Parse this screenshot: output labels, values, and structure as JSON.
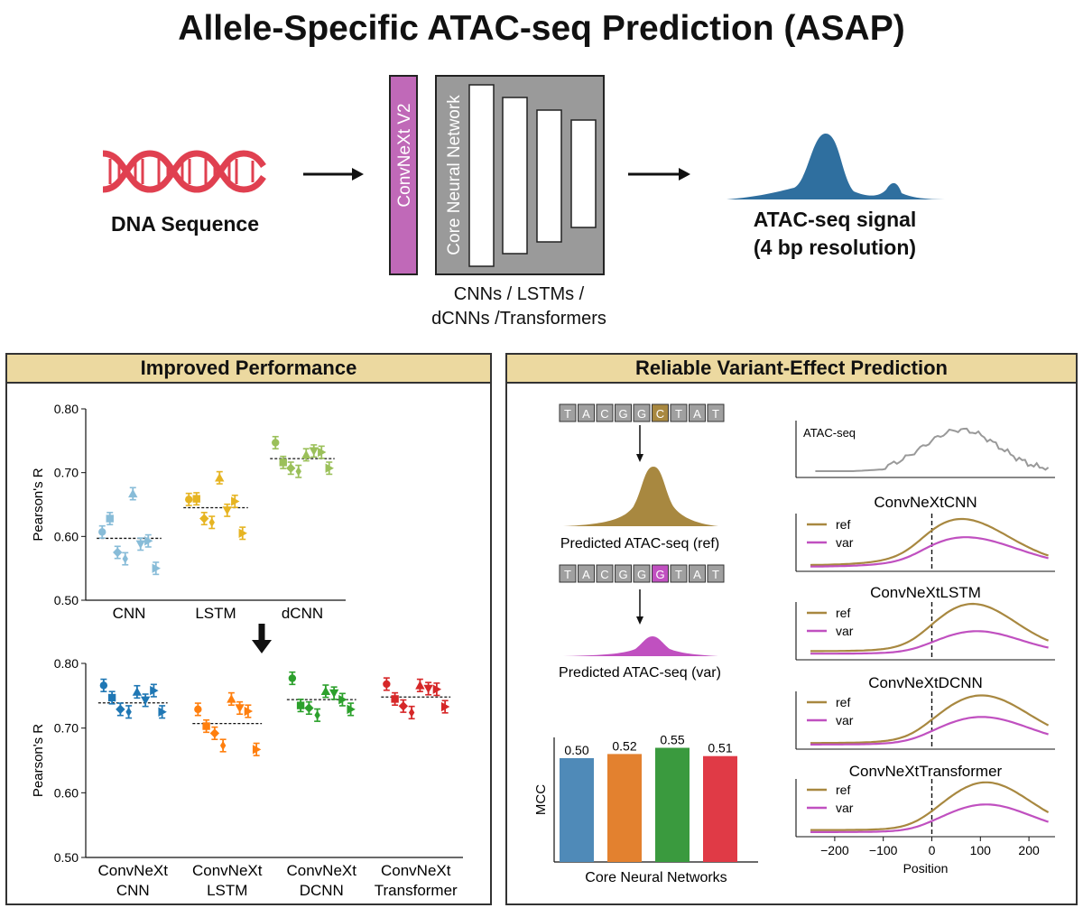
{
  "title": "Allele-Specific ATAC-seq Prediction (ASAP)",
  "pipeline": {
    "dna_label": "DNA Sequence",
    "convnext_label": "ConvNeXt V2",
    "core_label": "Core Neural Network",
    "core_caption_line1": "CNNs / LSTMs /",
    "core_caption_line2": "dCNNs /Transformers",
    "output_label_line1": "ATAC-seq signal",
    "output_label_line2": "(4 bp resolution)"
  },
  "colors": {
    "convnext": "#c069b8",
    "dna": "#e04050",
    "signal": "#2f6f9f",
    "ref": "#a88840",
    "var": "#c050c0",
    "header": "#ecd9a0"
  },
  "left_panel": {
    "title": "Improved Performance",
    "chart_data": [
      {
        "type": "scatter",
        "ylabel": "Pearson's R",
        "ylim": [
          0.5,
          0.8
        ],
        "yticks": [
          "0.50",
          "0.60",
          "0.70",
          "0.80"
        ],
        "categories": [
          "CNN",
          "LSTM",
          "dCNN"
        ],
        "colors": [
          "#88bcd8",
          "#e6b422",
          "#9bc05a"
        ],
        "means": [
          0.597,
          0.645,
          0.722
        ],
        "values": [
          [
            0.607,
            0.628,
            0.575,
            0.565,
            0.667,
            0.588,
            0.593,
            0.55
          ],
          [
            0.658,
            0.659,
            0.628,
            0.622,
            0.692,
            0.641,
            0.655,
            0.605
          ],
          [
            0.747,
            0.716,
            0.707,
            0.702,
            0.728,
            0.734,
            0.732,
            0.707
          ]
        ]
      },
      {
        "type": "scatter",
        "ylabel": "Pearson's R",
        "ylim": [
          0.5,
          0.8
        ],
        "yticks": [
          "0.50",
          "0.60",
          "0.70",
          "0.80"
        ],
        "categories": [
          [
            "ConvNeXt",
            "CNN"
          ],
          [
            "ConvNeXt",
            "LSTM"
          ],
          [
            "ConvNeXt",
            "DCNN"
          ],
          [
            "ConvNeXt",
            "Transformer"
          ]
        ],
        "colors": [
          "#1f77b4",
          "#ff7f0e",
          "#2ca02c",
          "#d62728"
        ],
        "means": [
          0.739,
          0.707,
          0.744,
          0.748
        ],
        "values": [
          [
            0.766,
            0.747,
            0.729,
            0.725,
            0.756,
            0.743,
            0.758,
            0.725
          ],
          [
            0.729,
            0.703,
            0.692,
            0.673,
            0.745,
            0.731,
            0.726,
            0.667
          ],
          [
            0.777,
            0.735,
            0.731,
            0.72,
            0.757,
            0.754,
            0.744,
            0.729
          ],
          [
            0.768,
            0.745,
            0.734,
            0.724,
            0.766,
            0.761,
            0.76,
            0.733
          ]
        ]
      }
    ]
  },
  "right_panel": {
    "title": "Reliable Variant-Effect Prediction",
    "ref_sequence": [
      "T",
      "A",
      "C",
      "G",
      "G",
      "C",
      "T",
      "A",
      "T"
    ],
    "var_sequence": [
      "T",
      "A",
      "C",
      "G",
      "G",
      "G",
      "T",
      "A",
      "T"
    ],
    "highlight_index": 5,
    "ref_caption": "Predicted ATAC-seq (ref)",
    "var_caption": "Predicted ATAC-seq (var)",
    "mcc_chart": {
      "type": "bar",
      "ylabel": "MCC",
      "xlabel": "Core Neural Networks",
      "values": [
        0.5,
        0.52,
        0.55,
        0.51
      ],
      "value_labels": [
        "0.50",
        "0.52",
        "0.55",
        "0.51"
      ],
      "colors": [
        "#4f8ab8",
        "#e3812f",
        "#3a9a3e",
        "#e03a46"
      ]
    },
    "track_panel": {
      "atac_label": "ATAC-seq",
      "xlabel": "Position",
      "xticks": [
        "−200",
        "−100",
        "0",
        "100",
        "200"
      ],
      "ref_legend": "ref",
      "var_legend": "var",
      "subplot_titles": [
        "ConvNeXtCNN",
        "ConvNeXtLSTM",
        "ConvNeXtDCNN",
        "ConvNeXtTransformer"
      ]
    }
  }
}
